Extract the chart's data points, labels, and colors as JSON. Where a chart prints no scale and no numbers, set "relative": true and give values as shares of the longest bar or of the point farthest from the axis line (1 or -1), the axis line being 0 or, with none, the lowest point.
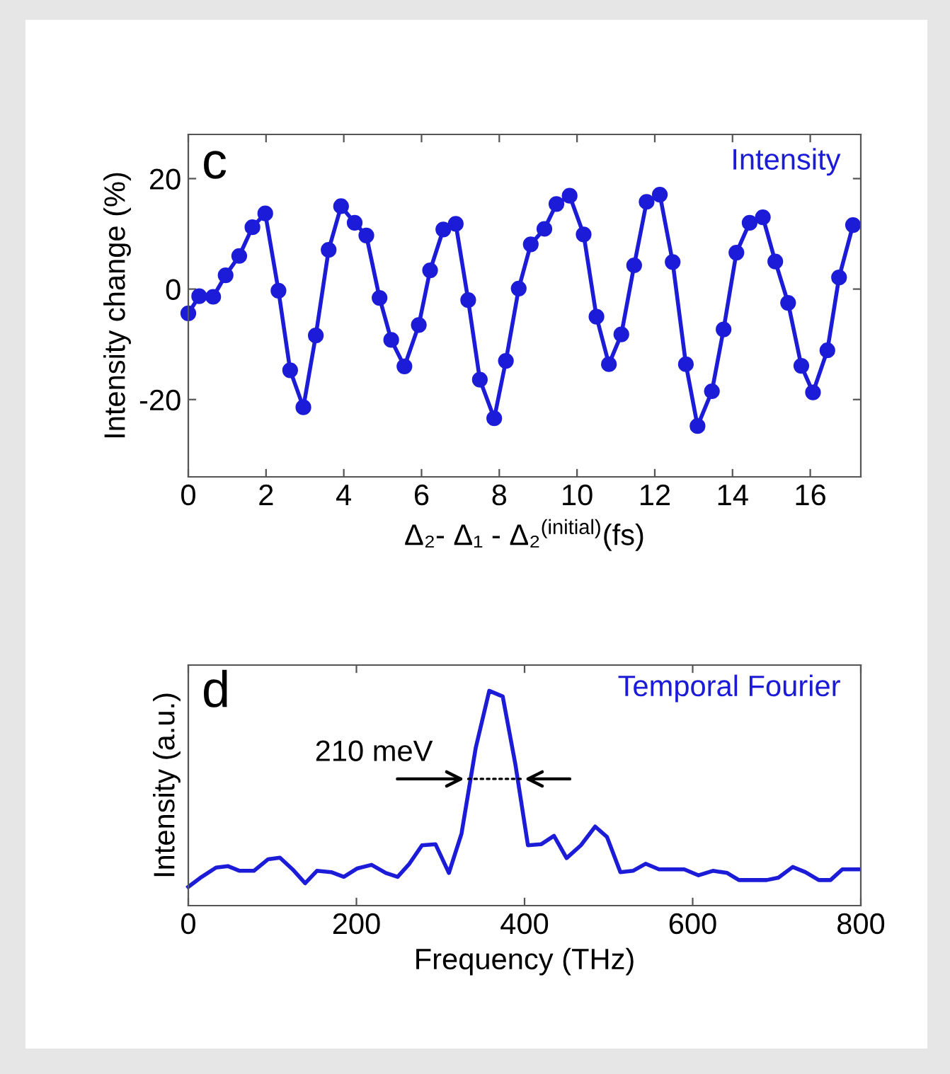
{
  "chart_data": [
    {
      "type": "line",
      "xlabel": "Δ₂- Δ₁ - Δ₂$^{(initial)}$(fs)",
      "ylabel": "Intensity change (%)",
      "annotations": [
        "c"
      ],
      "x": [
        0,
        0.28,
        0.64,
        0.96,
        1.31,
        1.65,
        1.98,
        2.32,
        2.62,
        2.96,
        3.28,
        3.61,
        3.93,
        4.28,
        4.58,
        4.92,
        5.22,
        5.56,
        5.93,
        6.22,
        6.56,
        6.88,
        7.2,
        7.5,
        7.87,
        8.17,
        8.5,
        8.81,
        9.16,
        9.47,
        9.81,
        10.17,
        10.5,
        10.82,
        11.14,
        11.47,
        11.79,
        12.13,
        12.46,
        12.8,
        13.1,
        13.47,
        13.77,
        14.1,
        14.44,
        14.78,
        15.1,
        15.43,
        15.77,
        16.07,
        16.44,
        16.74,
        17.1
      ],
      "series": [
        {
          "name": "Intensity",
          "color": "#1c1cd8",
          "values": [
            -4.4,
            -1.3,
            -1.4,
            2.5,
            6.0,
            11.2,
            13.7,
            -0.3,
            -14.7,
            -21.4,
            -8.4,
            7.1,
            15.0,
            12.0,
            9.7,
            -1.6,
            -9.2,
            -14.0,
            -6.5,
            3.4,
            10.8,
            11.8,
            -2.0,
            -16.4,
            -23.4,
            -13.0,
            0.1,
            8.1,
            10.9,
            15.4,
            16.9,
            9.9,
            -5.0,
            -13.6,
            -8.2,
            4.3,
            15.8,
            17.1,
            4.9,
            -13.6,
            -24.8,
            -18.5,
            -7.3,
            6.6,
            12.0,
            13.0,
            5.0,
            -2.5,
            -13.9,
            -18.7,
            -11.1,
            2.1,
            11.6
          ]
        }
      ],
      "xlim": [
        0,
        17.3
      ],
      "xticks": [
        0,
        2,
        4,
        6,
        8,
        10,
        12,
        14,
        16
      ],
      "ylim": [
        -34,
        28
      ],
      "yticks": [
        -20,
        0,
        20
      ],
      "marker": "circle",
      "line_style": "solid",
      "grid": false,
      "legend": "top right"
    },
    {
      "type": "line",
      "xlabel": "Frequency (THz)",
      "ylabel": "Intensity (a.u.)",
      "relative": true,
      "tick_labels": "x",
      "annotations": [
        "d",
        {
          "text": "210 meV",
          "x": 333,
          "y": 0.59
        }
      ],
      "x": [
        0,
        16,
        33,
        47,
        61,
        78,
        95,
        109,
        124,
        139,
        153,
        170,
        185,
        201,
        218,
        235,
        249,
        263,
        278,
        294,
        310,
        325,
        342,
        358,
        374,
        389,
        404,
        420,
        435,
        450,
        467,
        484,
        498,
        514,
        529,
        544,
        560,
        575,
        590,
        607,
        624,
        641,
        655,
        672,
        688,
        702,
        719,
        734,
        750,
        764,
        778,
        798
      ],
      "series": [
        {
          "name": "Temporal Fourier",
          "color": "#1c1cd8",
          "values": [
            0.087,
            0.134,
            0.177,
            0.184,
            0.162,
            0.162,
            0.216,
            0.223,
            0.169,
            0.104,
            0.162,
            0.156,
            0.134,
            0.173,
            0.19,
            0.152,
            0.134,
            0.195,
            0.281,
            0.286,
            0.152,
            0.335,
            0.736,
            1.0,
            0.974,
            0.66,
            0.281,
            0.286,
            0.325,
            0.221,
            0.281,
            0.368,
            0.32,
            0.156,
            0.162,
            0.195,
            0.169,
            0.169,
            0.169,
            0.141,
            0.162,
            0.152,
            0.119,
            0.119,
            0.119,
            0.13,
            0.18,
            0.156,
            0.119,
            0.119,
            0.169,
            0.169
          ]
        }
      ],
      "xlim": [
        0,
        800
      ],
      "xticks": [
        0,
        200,
        400,
        600,
        800
      ],
      "marker": "none",
      "line_style": "solid",
      "grid": false,
      "legend": "top right"
    }
  ]
}
